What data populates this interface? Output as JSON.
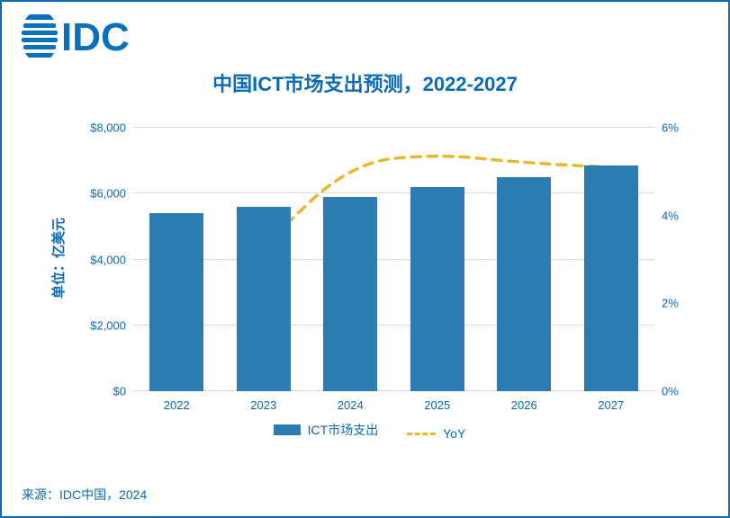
{
  "logo": {
    "text": "IDC",
    "color": "#0a70be"
  },
  "title": {
    "text": "中国ICT市场支出预测，2022-2027",
    "fontsize": 22,
    "color": "#0a6ab4"
  },
  "source": {
    "text": "来源：IDC中国，2024"
  },
  "chart": {
    "type": "bar+line",
    "background_color": "#ffffff",
    "grid_color": "#d9d9d9",
    "categories": [
      "2022",
      "2023",
      "2024",
      "2025",
      "2026",
      "2027"
    ],
    "bars": {
      "label": "ICT市场支出",
      "values": [
        5400,
        5600,
        5900,
        6200,
        6500,
        6850
      ],
      "color": "#2b7cb3",
      "width_frac": 0.62
    },
    "line": {
      "label": "YoY",
      "values": [
        null,
        3.3,
        5.2,
        5.4,
        5.2,
        5.1
      ],
      "color": "#e8b82e",
      "dash": "10,8",
      "width": 3.5
    },
    "y_left": {
      "label": "单位：亿美元",
      "min": 0,
      "max": 8000,
      "step": 2000,
      "tick_labels": [
        "$0",
        "$2,000",
        "$4,000",
        "$6,000",
        "$8,000"
      ],
      "label_fontsize": 15
    },
    "y_right": {
      "min": 0,
      "max": 6,
      "step": 2,
      "tick_labels": [
        "0%",
        "2%",
        "4%",
        "6%"
      ]
    },
    "legend": {
      "bar_swatch": {
        "w": 30,
        "h": 12
      }
    }
  },
  "frame_border_color": "#0a6ab4"
}
